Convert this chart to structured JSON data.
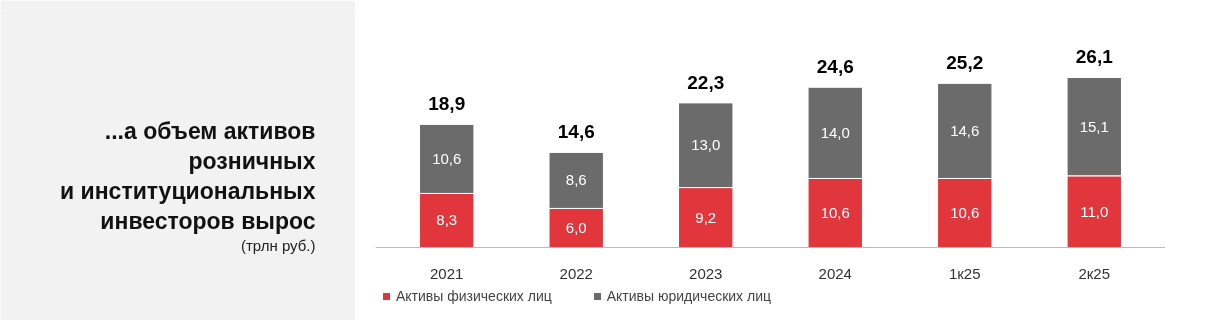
{
  "chart_data": {
    "type": "bar",
    "title": "...а объем активов\nрозничных\nи институциональных\nинвесторов вырос",
    "subtitle": "(трлн руб.)",
    "categories": [
      "2021",
      "2022",
      "2023",
      "2024",
      "1к25",
      "2к25"
    ],
    "stacked": true,
    "legend": "bottom left",
    "series": [
      {
        "name": "Активы физических лиц",
        "color": "#e0363c",
        "values": [
          8.3,
          6.0,
          9.2,
          10.6,
          10.6,
          11.0
        ],
        "value_labels": [
          "8,3",
          "6,0",
          "9,2",
          "10,6",
          "10,6",
          "11,0"
        ]
      },
      {
        "name": "Активы юридических лиц",
        "color": "#6b6b6b",
        "values": [
          10.6,
          8.6,
          13.0,
          14.0,
          14.6,
          15.1
        ],
        "value_labels": [
          "10,6",
          "8,6",
          "13,0",
          "14,0",
          "14,6",
          "15,1"
        ]
      }
    ],
    "totals": [
      "18,9",
      "14,6",
      "22,3",
      "24,6",
      "25,2",
      "26,1"
    ]
  }
}
